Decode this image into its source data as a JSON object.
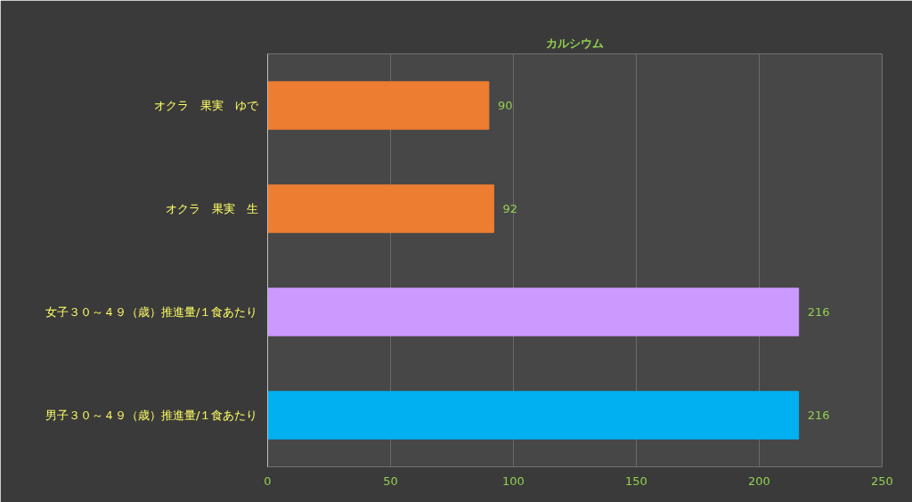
{
  "chart_data": {
    "type": "bar",
    "orientation": "horizontal",
    "title": "カルシウム",
    "categories": [
      "オクラ　果実　ゆで",
      "オクラ　果実　生",
      "女子３０～４９（歳）推進量/１食あたり",
      "男子３０～４９（歳）推進量/１食あたり"
    ],
    "values": [
      90,
      92,
      216,
      216
    ],
    "colors": [
      "#ed7d31",
      "#ed7d31",
      "#cc99ff",
      "#00b0f0"
    ],
    "xlim": [
      0,
      250
    ],
    "xticks": [
      0,
      50,
      100,
      150,
      200,
      250
    ],
    "grid": "x",
    "data_labels": true
  }
}
